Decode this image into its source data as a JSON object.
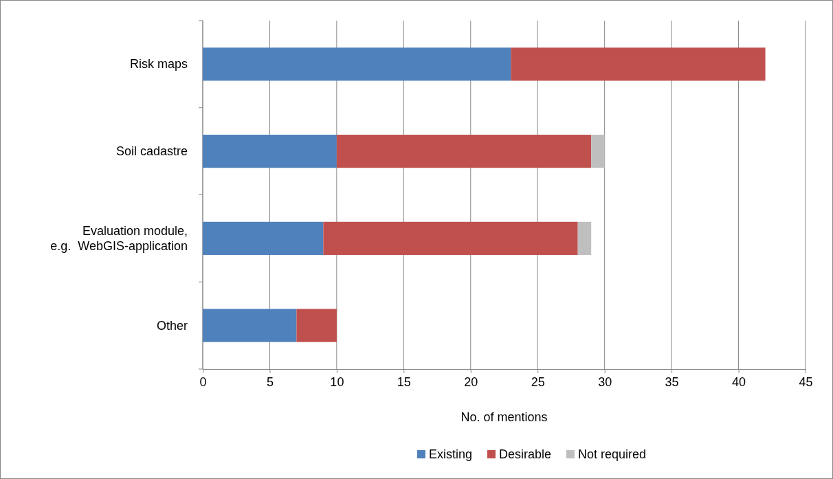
{
  "chart_data": {
    "type": "bar",
    "orientation": "horizontal",
    "stacked": true,
    "categories": [
      "Risk maps",
      "Soil cadastre",
      "Evaluation module,\ne.g.  WebGIS-application",
      "Other"
    ],
    "series": [
      {
        "name": "Existing",
        "color": "#4f81bd",
        "values": [
          23,
          10,
          9,
          7
        ]
      },
      {
        "name": "Desirable",
        "color": "#c0504d",
        "values": [
          19,
          19,
          19,
          3
        ]
      },
      {
        "name": "Not required",
        "color": "#bfbfbf",
        "values": [
          0,
          1,
          1,
          0
        ]
      }
    ],
    "xlabel": "No. of mentions",
    "xlim": [
      0,
      45
    ],
    "xticks": [
      0,
      5,
      10,
      15,
      20,
      25,
      30,
      35,
      40,
      45
    ],
    "grid": "x",
    "legend": "bottom"
  }
}
